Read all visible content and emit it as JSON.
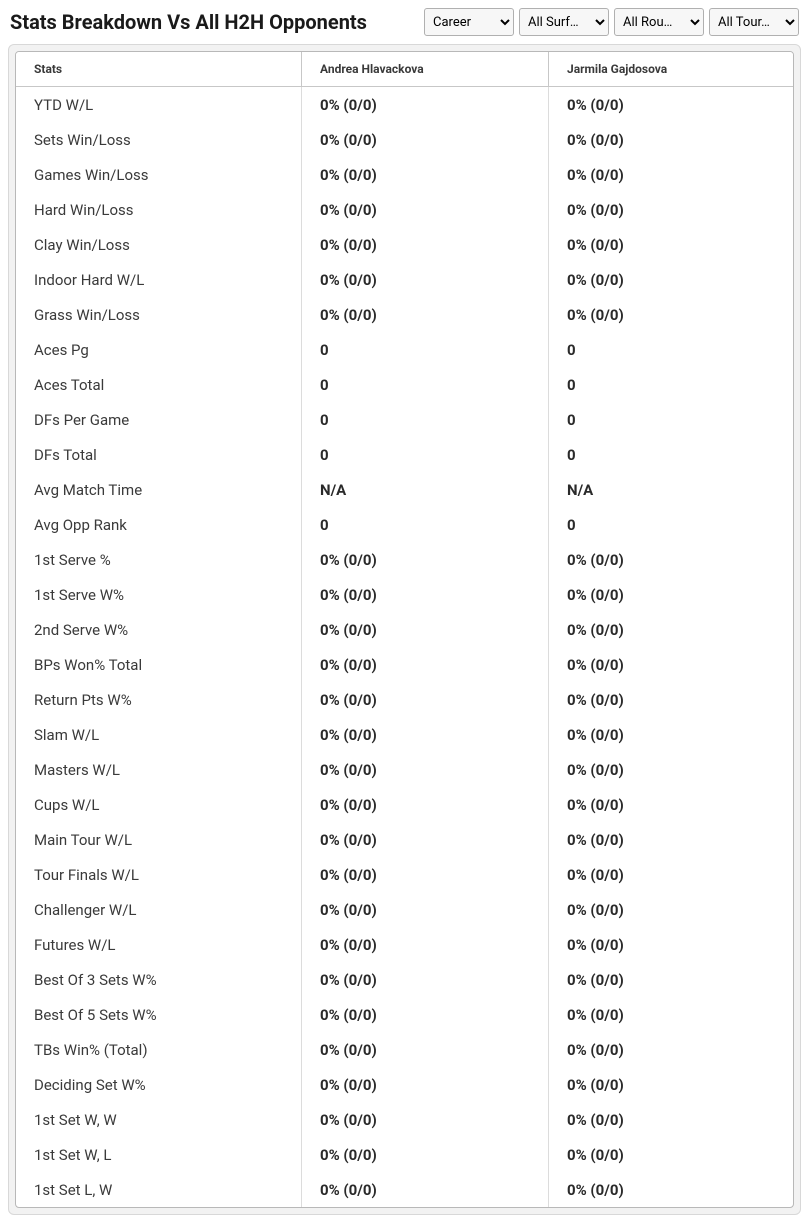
{
  "header": {
    "title": "Stats Breakdown Vs All H2H Opponents",
    "filters": {
      "period": {
        "selected": "Career",
        "options": [
          "Career"
        ]
      },
      "surface": {
        "selected": "All Surf…",
        "options": [
          "All Surf…"
        ]
      },
      "round": {
        "selected": "All Rou…",
        "options": [
          "All Rou…"
        ]
      },
      "tour": {
        "selected": "All Tour…",
        "options": [
          "All Tour…"
        ]
      }
    }
  },
  "table": {
    "columns": {
      "stat": "Stats",
      "p1": "Andrea Hlavackova",
      "p2": "Jarmila Gajdosova"
    },
    "rows": [
      {
        "stat": "YTD W/L",
        "p1": "0% (0/0)",
        "p2": "0% (0/0)"
      },
      {
        "stat": "Sets Win/Loss",
        "p1": "0% (0/0)",
        "p2": "0% (0/0)"
      },
      {
        "stat": "Games Win/Loss",
        "p1": "0% (0/0)",
        "p2": "0% (0/0)"
      },
      {
        "stat": "Hard Win/Loss",
        "p1": "0% (0/0)",
        "p2": "0% (0/0)"
      },
      {
        "stat": "Clay Win/Loss",
        "p1": "0% (0/0)",
        "p2": "0% (0/0)"
      },
      {
        "stat": "Indoor Hard W/L",
        "p1": "0% (0/0)",
        "p2": "0% (0/0)"
      },
      {
        "stat": "Grass Win/Loss",
        "p1": "0% (0/0)",
        "p2": "0% (0/0)"
      },
      {
        "stat": "Aces Pg",
        "p1": "0",
        "p2": "0"
      },
      {
        "stat": "Aces Total",
        "p1": "0",
        "p2": "0"
      },
      {
        "stat": "DFs Per Game",
        "p1": "0",
        "p2": "0"
      },
      {
        "stat": "DFs Total",
        "p1": "0",
        "p2": "0"
      },
      {
        "stat": "Avg Match Time",
        "p1": "N/A",
        "p2": "N/A"
      },
      {
        "stat": "Avg Opp Rank",
        "p1": "0",
        "p2": "0"
      },
      {
        "stat": "1st Serve %",
        "p1": "0% (0/0)",
        "p2": "0% (0/0)"
      },
      {
        "stat": "1st Serve W%",
        "p1": "0% (0/0)",
        "p2": "0% (0/0)"
      },
      {
        "stat": "2nd Serve W%",
        "p1": "0% (0/0)",
        "p2": "0% (0/0)"
      },
      {
        "stat": "BPs Won% Total",
        "p1": "0% (0/0)",
        "p2": "0% (0/0)"
      },
      {
        "stat": "Return Pts W%",
        "p1": "0% (0/0)",
        "p2": "0% (0/0)"
      },
      {
        "stat": "Slam W/L",
        "p1": "0% (0/0)",
        "p2": "0% (0/0)"
      },
      {
        "stat": "Masters W/L",
        "p1": "0% (0/0)",
        "p2": "0% (0/0)"
      },
      {
        "stat": "Cups W/L",
        "p1": "0% (0/0)",
        "p2": "0% (0/0)"
      },
      {
        "stat": "Main Tour W/L",
        "p1": "0% (0/0)",
        "p2": "0% (0/0)"
      },
      {
        "stat": "Tour Finals W/L",
        "p1": "0% (0/0)",
        "p2": "0% (0/0)"
      },
      {
        "stat": "Challenger W/L",
        "p1": "0% (0/0)",
        "p2": "0% (0/0)"
      },
      {
        "stat": "Futures W/L",
        "p1": "0% (0/0)",
        "p2": "0% (0/0)"
      },
      {
        "stat": "Best Of 3 Sets W%",
        "p1": "0% (0/0)",
        "p2": "0% (0/0)"
      },
      {
        "stat": "Best Of 5 Sets W%",
        "p1": "0% (0/0)",
        "p2": "0% (0/0)"
      },
      {
        "stat": "TBs Win% (Total)",
        "p1": "0% (0/0)",
        "p2": "0% (0/0)"
      },
      {
        "stat": "Deciding Set W%",
        "p1": "0% (0/0)",
        "p2": "0% (0/0)"
      },
      {
        "stat": "1st Set W, W",
        "p1": "0% (0/0)",
        "p2": "0% (0/0)"
      },
      {
        "stat": "1st Set W, L",
        "p1": "0% (0/0)",
        "p2": "0% (0/0)"
      },
      {
        "stat": "1st Set L, W",
        "p1": "0% (0/0)",
        "p2": "0% (0/0)"
      }
    ]
  }
}
